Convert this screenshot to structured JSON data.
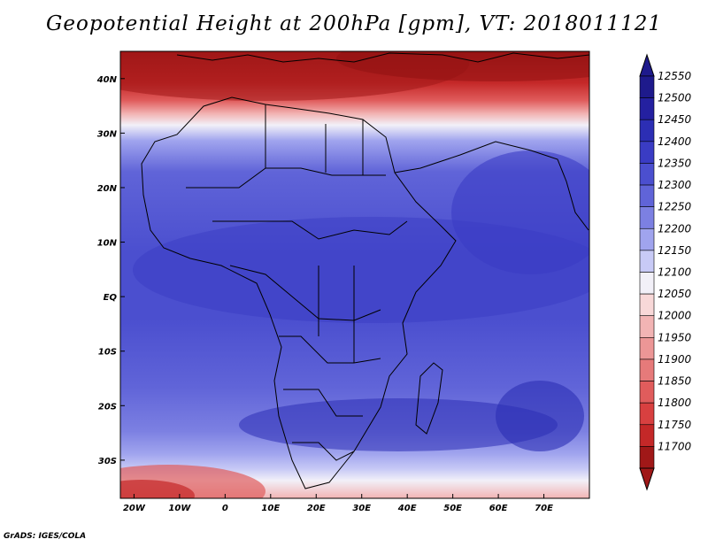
{
  "title": "Geopotential Height at 200hPa [gpm], VT: 2018011121",
  "credit": "GrADS: IGES/COLA",
  "map": {
    "lon_range": [
      -23,
      80
    ],
    "lat_range": [
      -37,
      45
    ],
    "lon_ticks": [
      {
        "lon": -20,
        "label": "20W"
      },
      {
        "lon": -10,
        "label": "10W"
      },
      {
        "lon": 0,
        "label": "0"
      },
      {
        "lon": 10,
        "label": "10E"
      },
      {
        "lon": 20,
        "label": "20E"
      },
      {
        "lon": 30,
        "label": "30E"
      },
      {
        "lon": 40,
        "label": "40E"
      },
      {
        "lon": 50,
        "label": "50E"
      },
      {
        "lon": 60,
        "label": "60E"
      },
      {
        "lon": 70,
        "label": "70E"
      }
    ],
    "lat_ticks": [
      {
        "lat": 40,
        "label": "40N"
      },
      {
        "lat": 30,
        "label": "30N"
      },
      {
        "lat": 20,
        "label": "20N"
      },
      {
        "lat": 10,
        "label": "10N"
      },
      {
        "lat": 0,
        "label": "EQ"
      },
      {
        "lat": -10,
        "label": "10S"
      },
      {
        "lat": -20,
        "label": "20S"
      },
      {
        "lat": -30,
        "label": "30S"
      }
    ]
  },
  "colorbar": {
    "levels": [
      {
        "value": "12550",
        "color": "#1e1a8c"
      },
      {
        "value": "12500",
        "color": "#2420a0"
      },
      {
        "value": "12450",
        "color": "#2c2eb4"
      },
      {
        "value": "12400",
        "color": "#3a3cc4"
      },
      {
        "value": "12350",
        "color": "#4b4fcf"
      },
      {
        "value": "12300",
        "color": "#6064d8"
      },
      {
        "value": "12250",
        "color": "#7c80e2"
      },
      {
        "value": "12200",
        "color": "#a0a4ee"
      },
      {
        "value": "12150",
        "color": "#c8caf6"
      },
      {
        "value": "12100",
        "color": "#f2f0f8"
      },
      {
        "value": "12050",
        "color": "#f8d8d8"
      },
      {
        "value": "12000",
        "color": "#f2b4b4"
      },
      {
        "value": "11950",
        "color": "#ec9696"
      },
      {
        "value": "11900",
        "color": "#e67a7a"
      },
      {
        "value": "11850",
        "color": "#e05c5c"
      },
      {
        "value": "11800",
        "color": "#d84040"
      },
      {
        "value": "11750",
        "color": "#c42828"
      },
      {
        "value": "11700",
        "color": "#a01818"
      }
    ]
  }
}
